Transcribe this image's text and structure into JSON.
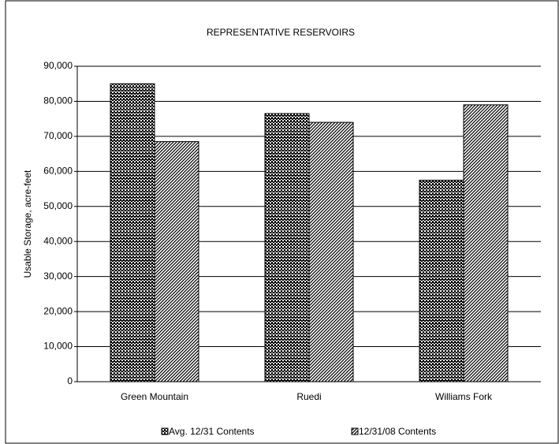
{
  "chart_data": {
    "type": "bar",
    "title": "REPRESENTATIVE RESERVOIRS",
    "y_label": "Usable Storage, acre-feet",
    "categories": [
      "Green Mountain",
      "Ruedi",
      "Williams Fork"
    ],
    "series": [
      {
        "name": "Avg. 12/31 Contents",
        "color": "#000000",
        "pattern": "checker",
        "values": [
          85000,
          76500,
          57500
        ]
      },
      {
        "name": "12/31/08 Contents",
        "color": "#000000",
        "pattern": "diagonal",
        "values": [
          68500,
          74000,
          79000
        ]
      }
    ],
    "ylim": [
      0,
      90000
    ],
    "yticks": [
      {
        "value": 0,
        "label": "0"
      },
      {
        "value": 10000,
        "label": "10,000"
      },
      {
        "value": 20000,
        "label": "20,000"
      },
      {
        "value": 30000,
        "label": "30,000"
      },
      {
        "value": 40000,
        "label": "40,000"
      },
      {
        "value": 50000,
        "label": "50,000"
      },
      {
        "value": 60000,
        "label": "60,000"
      },
      {
        "value": 70000,
        "label": "70,000"
      },
      {
        "value": 80000,
        "label": "80,000"
      },
      {
        "value": 90000,
        "label": "90,000"
      }
    ],
    "grid": true,
    "legend": "bottom"
  }
}
